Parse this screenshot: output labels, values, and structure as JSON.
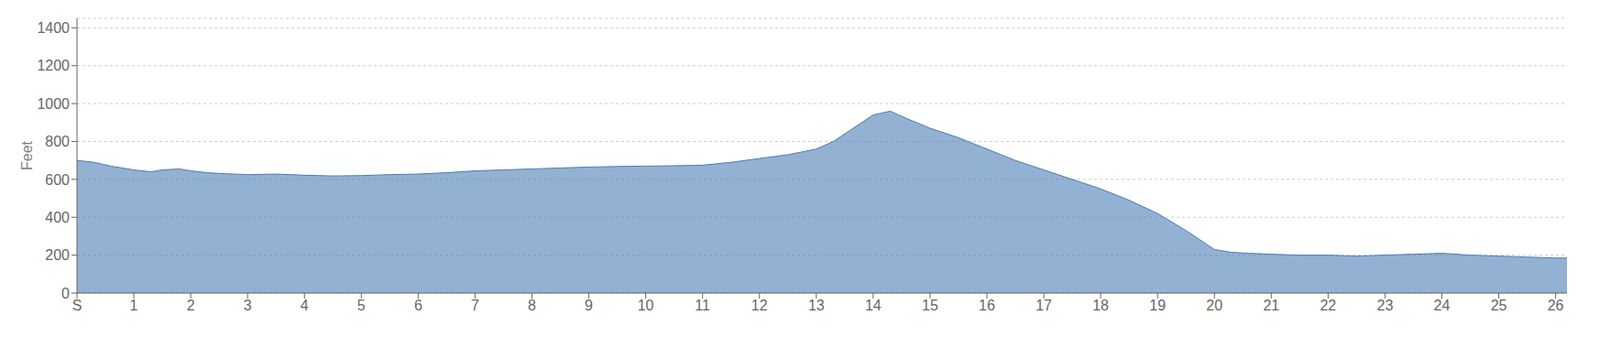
{
  "chart_data": {
    "type": "area",
    "ylabel": "Feet",
    "x": [
      0,
      0.3,
      0.6,
      1.0,
      1.3,
      1.5,
      1.8,
      2.0,
      2.3,
      2.6,
      3.0,
      3.5,
      4.0,
      4.5,
      5.0,
      5.5,
      6.0,
      6.5,
      7.0,
      7.5,
      8.0,
      8.5,
      9.0,
      9.5,
      10.0,
      10.5,
      11.0,
      11.5,
      12.0,
      12.5,
      13.0,
      13.3,
      13.6,
      14.0,
      14.3,
      14.6,
      15.0,
      15.5,
      16.0,
      16.5,
      17.0,
      17.5,
      18.0,
      18.5,
      19.0,
      19.5,
      20.0,
      20.3,
      20.6,
      21.0,
      21.5,
      22.0,
      22.5,
      23.0,
      23.5,
      24.0,
      24.5,
      25.0,
      25.5,
      26.0,
      26.2
    ],
    "values": [
      700,
      690,
      670,
      650,
      640,
      650,
      655,
      645,
      635,
      630,
      625,
      628,
      622,
      618,
      620,
      625,
      628,
      635,
      645,
      650,
      655,
      660,
      665,
      668,
      670,
      672,
      675,
      690,
      710,
      730,
      760,
      800,
      860,
      940,
      960,
      920,
      870,
      820,
      760,
      700,
      650,
      600,
      550,
      490,
      420,
      330,
      230,
      215,
      210,
      205,
      200,
      200,
      195,
      200,
      205,
      210,
      200,
      195,
      190,
      185,
      185
    ],
    "color": "#4b7db5",
    "xlim": [
      0,
      26.2
    ],
    "xticks": [
      {
        "value": 0,
        "label": "S"
      },
      1,
      2,
      3,
      4,
      5,
      6,
      7,
      8,
      9,
      10,
      11,
      12,
      13,
      14,
      15,
      16,
      17,
      18,
      19,
      20,
      21,
      22,
      23,
      24,
      25,
      26
    ],
    "ylim": [
      0,
      1450
    ],
    "yticks": [
      0,
      200,
      400,
      600,
      800,
      1000,
      1200,
      1400
    ],
    "grid": "y"
  }
}
